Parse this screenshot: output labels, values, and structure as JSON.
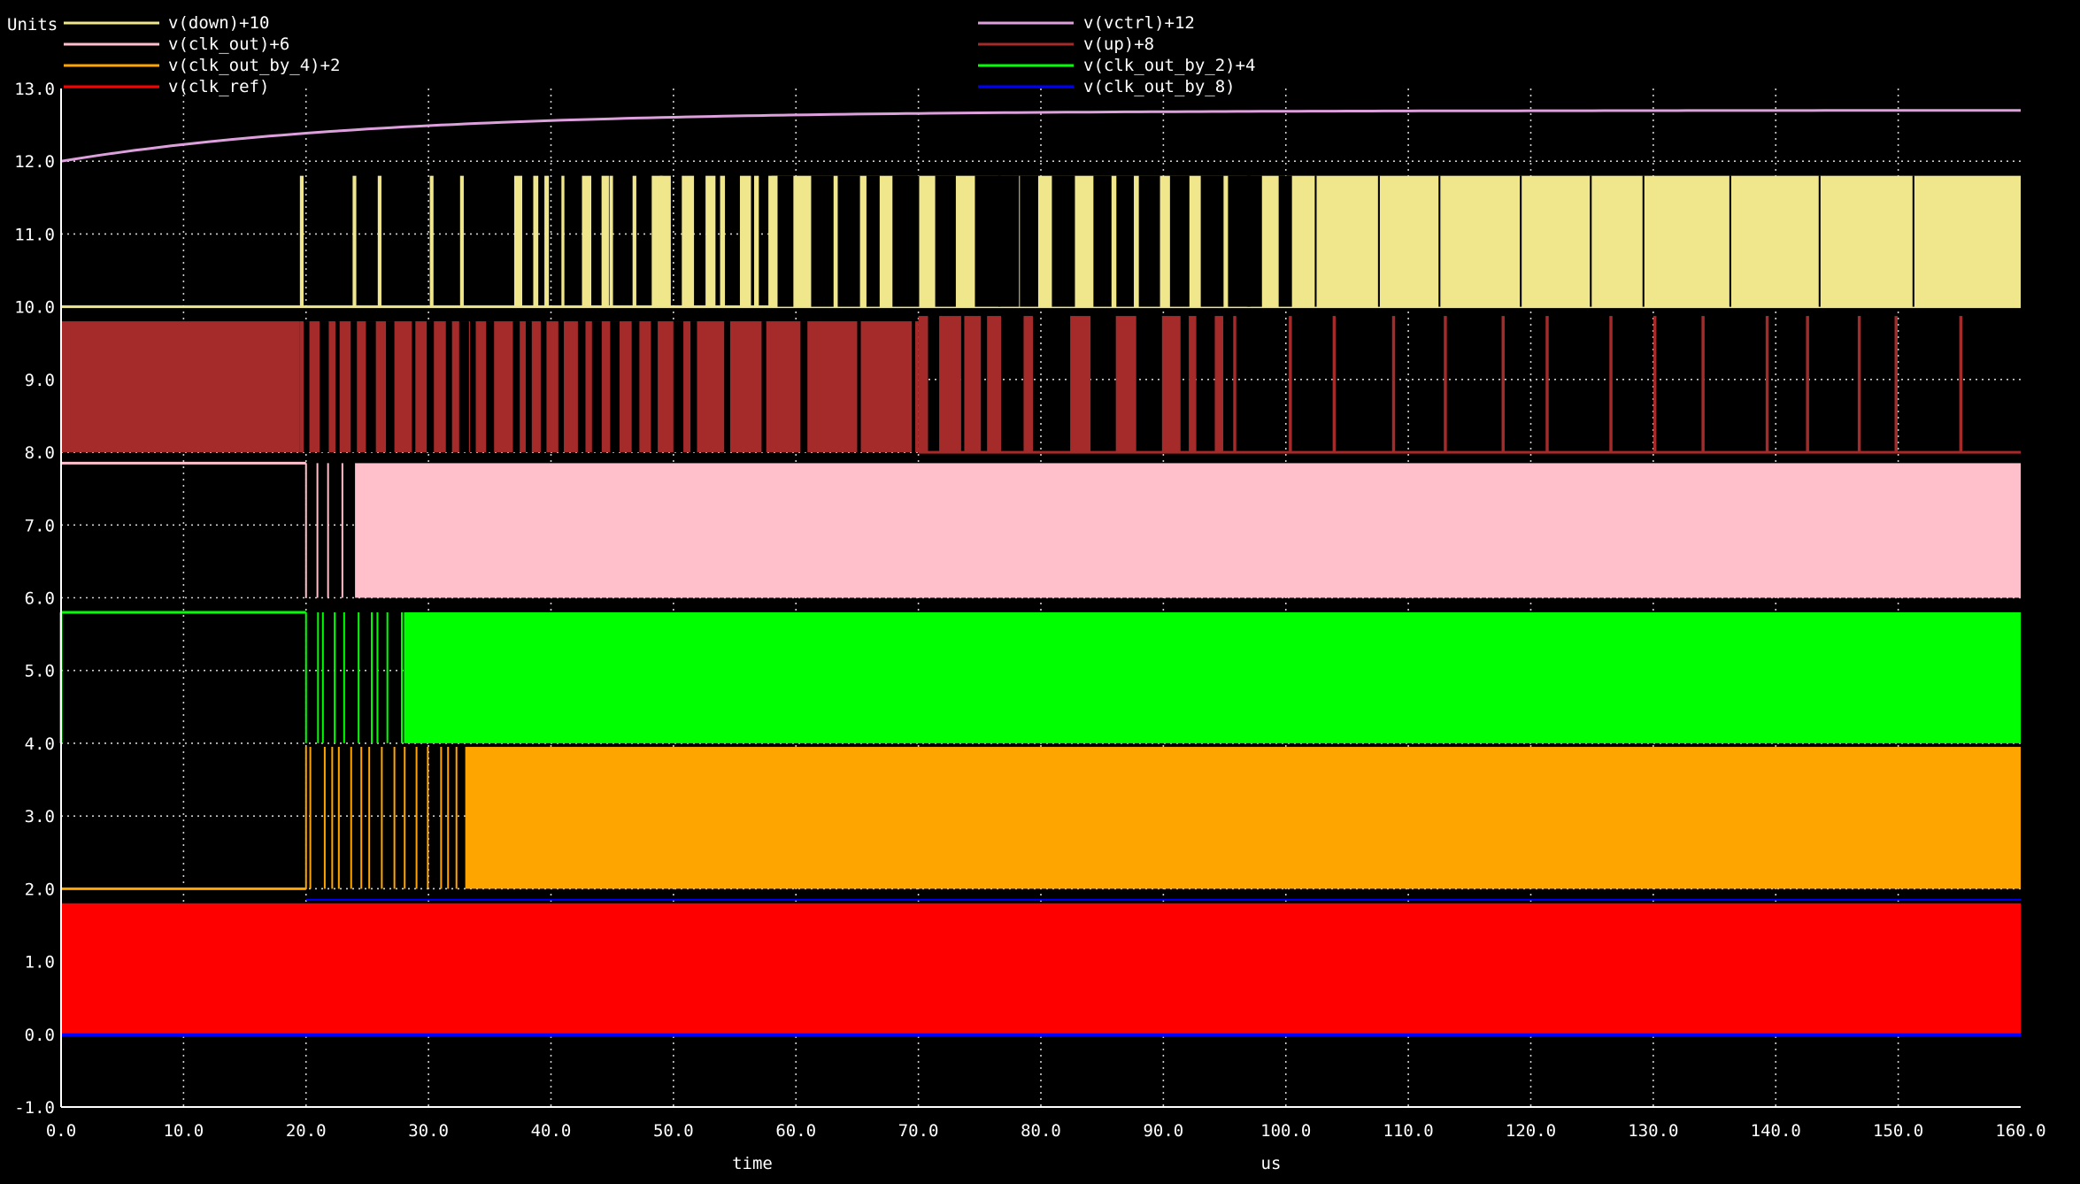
{
  "chart_data": {
    "type": "line",
    "ylabel": "Units",
    "xlabel": "time",
    "xunit": "us",
    "xlim": [
      0,
      160
    ],
    "ylim": [
      -1,
      13
    ],
    "grid": true,
    "legend_position": "top",
    "x_ticks": [
      "0.0",
      "10.0",
      "20.0",
      "30.0",
      "40.0",
      "50.0",
      "60.0",
      "70.0",
      "80.0",
      "90.0",
      "100.0",
      "110.0",
      "120.0",
      "130.0",
      "140.0",
      "150.0",
      "160.0"
    ],
    "y_ticks": [
      "-1.0",
      "0.0",
      "1.0",
      "2.0",
      "3.0",
      "4.0",
      "5.0",
      "6.0",
      "7.0",
      "8.0",
      "9.0",
      "10.0",
      "11.0",
      "12.0",
      "13.0"
    ],
    "series": [
      {
        "name": "v(down)+10",
        "color": "#f0e68c",
        "kind": "pulse",
        "base": 10,
        "high": 11.8,
        "start": 19.5,
        "dense": 58
      },
      {
        "name": "v(vctrl)+12",
        "color": "#dda0dd",
        "kind": "rise",
        "base": 12,
        "final": 12.7,
        "tau": 25
      },
      {
        "name": "v(clk_out)+6",
        "color": "#ffc0cb",
        "kind": "clock",
        "base": 6,
        "high": 7.85,
        "start": 20,
        "dense": 24
      },
      {
        "name": "v(up)+8",
        "color": "#a52a2a",
        "kind": "updown",
        "base": 8,
        "high": 9.8,
        "start": 19.5,
        "sparse": 70
      },
      {
        "name": "v(clk_out_by_4)+2",
        "color": "#ffa500",
        "kind": "clock",
        "base": 2,
        "high": 3.95,
        "start": 20,
        "dense": 33
      },
      {
        "name": "v(clk_out_by_2)+4",
        "color": "#00ff00",
        "kind": "clock",
        "base": 4,
        "high": 5.8,
        "start": 20,
        "dense": 28
      },
      {
        "name": "v(clk_ref)",
        "color": "#ff0000",
        "kind": "solid",
        "base": 0,
        "high": 1.8
      },
      {
        "name": "v(clk_out_by_8)",
        "color": "#0000ff",
        "kind": "edge",
        "base": 0,
        "high": 1.85
      }
    ],
    "legend_layout": [
      [
        "v(down)+10",
        "v(vctrl)+12"
      ],
      [
        "v(clk_out)+6",
        "v(up)+8"
      ],
      [
        "v(clk_out_by_4)+2",
        "v(clk_out_by_2)+4"
      ],
      [
        "v(clk_ref)",
        "v(clk_out_by_8)"
      ]
    ]
  }
}
